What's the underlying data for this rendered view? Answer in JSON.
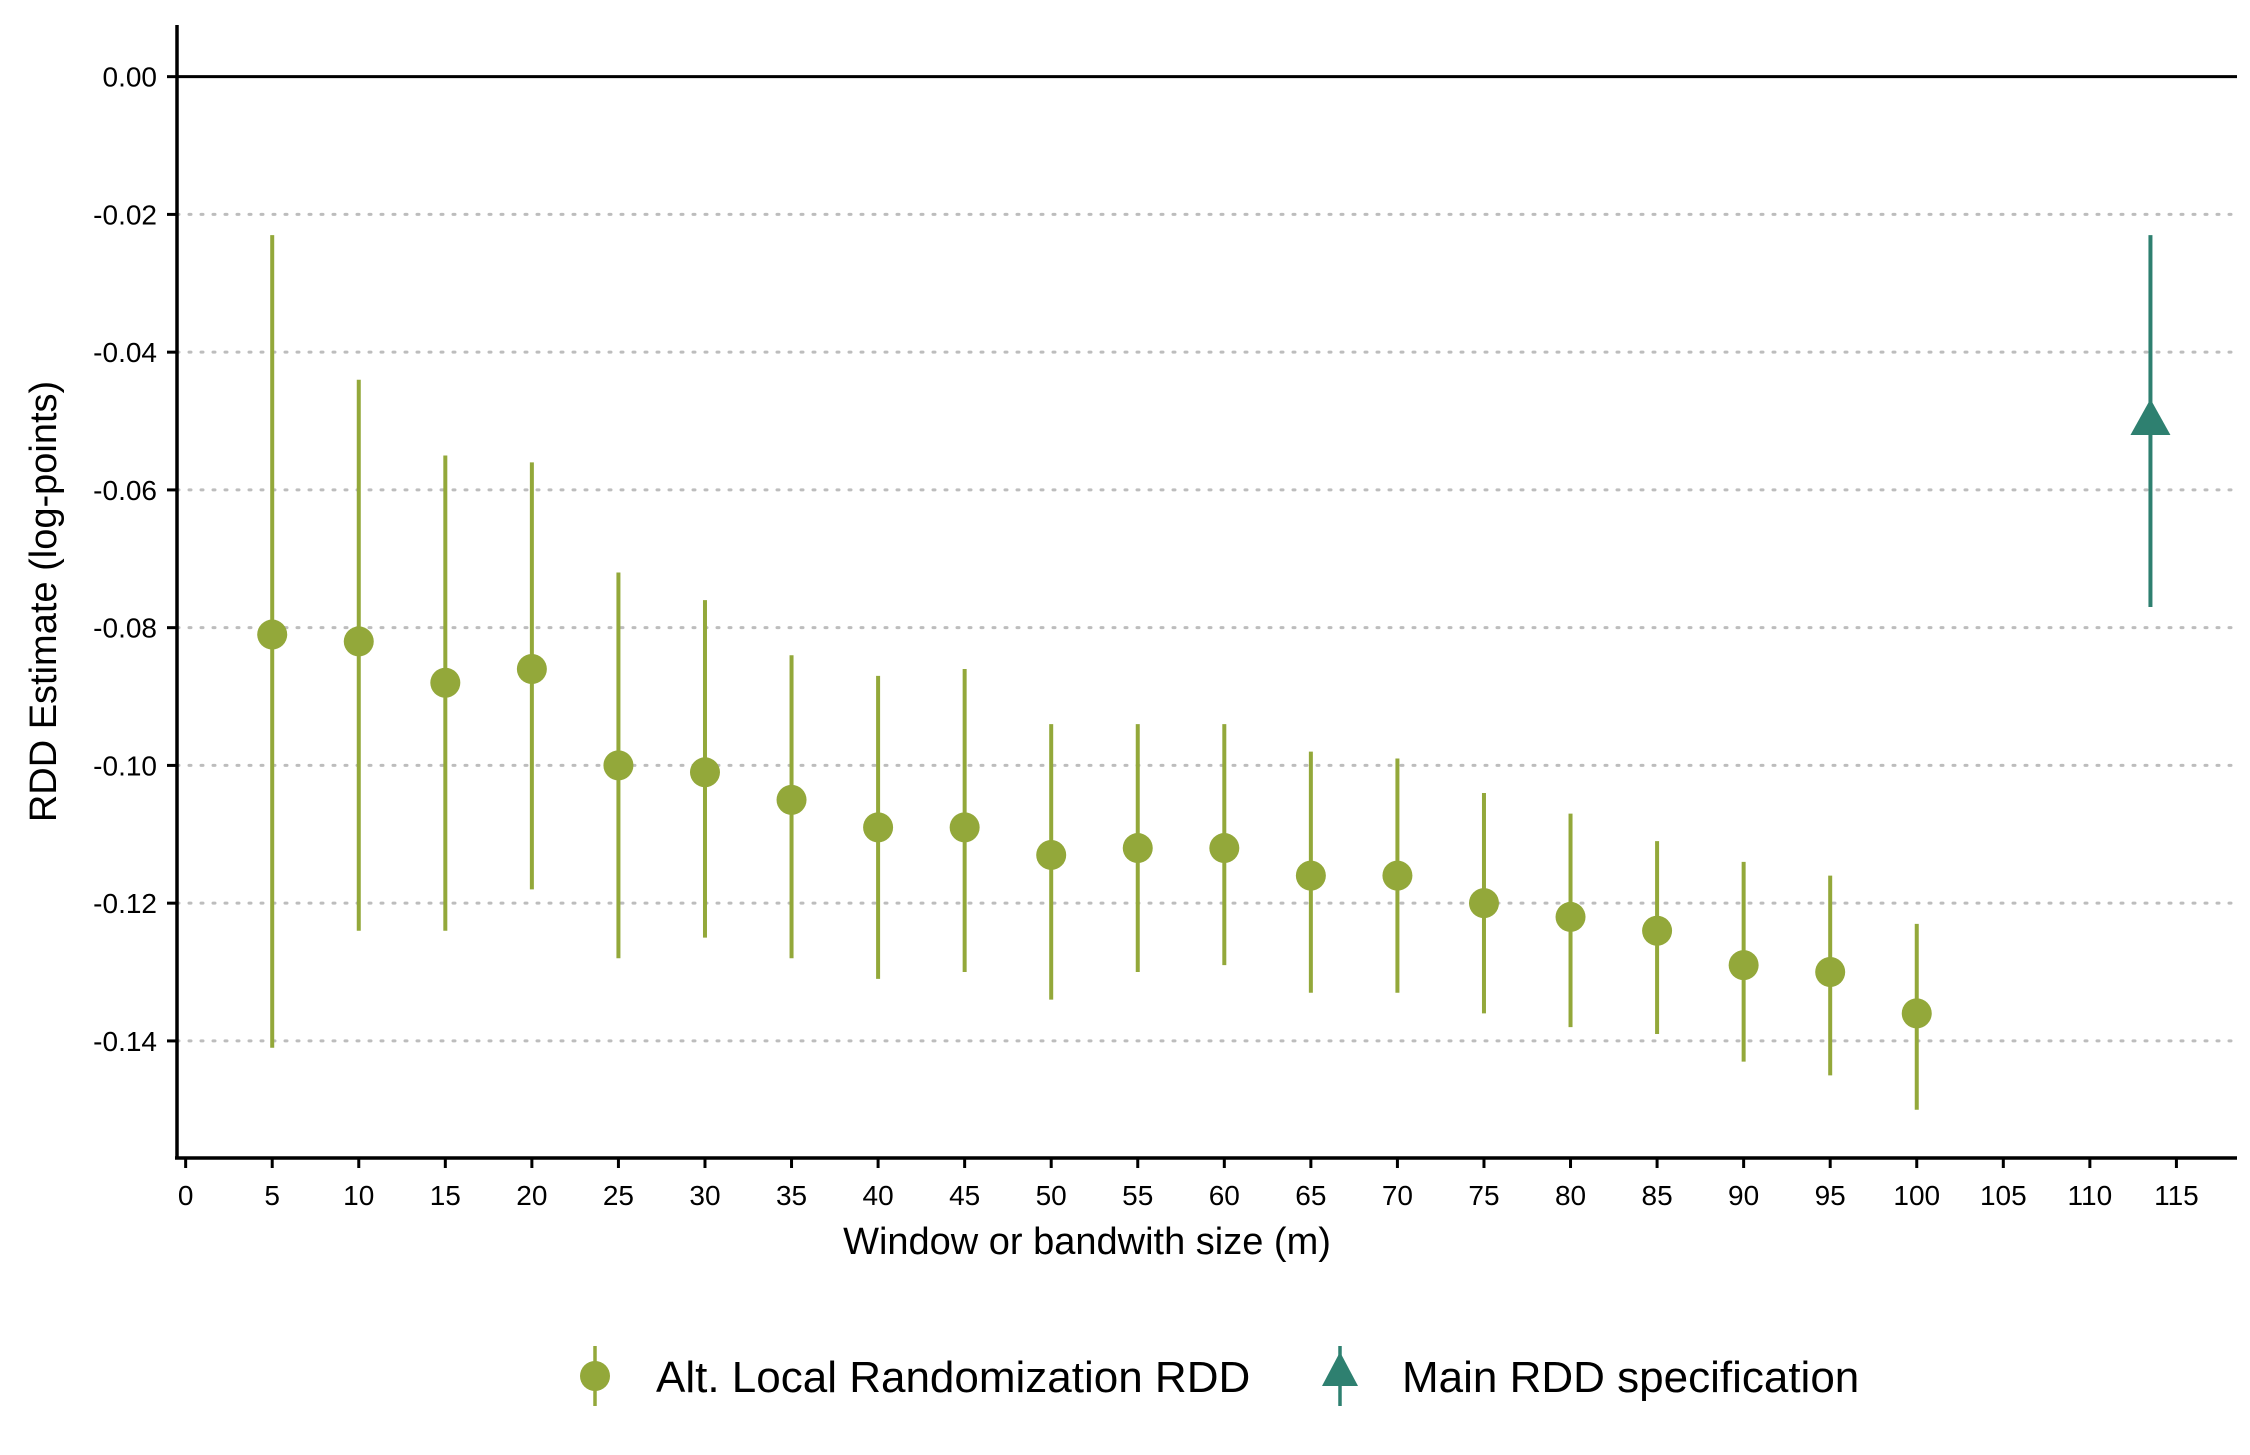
{
  "chart_data": {
    "type": "scatter",
    "xlabel": "Window or bandwith size (m)",
    "ylabel": "RDD Estimate (log-points)",
    "xlim": [
      -0.5,
      118.5
    ],
    "ylim": [
      -0.157,
      0.0075
    ],
    "x_ticks": [
      0,
      5,
      10,
      15,
      20,
      25,
      30,
      35,
      40,
      45,
      50,
      55,
      60,
      65,
      70,
      75,
      80,
      85,
      90,
      95,
      100,
      105,
      110,
      115
    ],
    "y_ticks": [
      0.0,
      -0.02,
      -0.04,
      -0.06,
      -0.08,
      -0.1,
      -0.12,
      -0.14
    ],
    "y_tick_labels": [
      "0.00",
      "-0.02",
      "-0.04",
      "-0.06",
      "-0.08",
      "-0.10",
      "-0.12",
      "-0.14"
    ],
    "reference_line": 0.0,
    "grid": "horizontal dotted",
    "legend_position": "bottom",
    "series": [
      {
        "name": "Alt. Local Randomization RDD",
        "marker": "circle",
        "color": "#93A83A",
        "x": [
          5,
          10,
          15,
          20,
          25,
          30,
          35,
          40,
          45,
          50,
          55,
          60,
          65,
          70,
          75,
          80,
          85,
          90,
          95,
          100
        ],
        "y": [
          -0.081,
          -0.082,
          -0.088,
          -0.086,
          -0.1,
          -0.101,
          -0.105,
          -0.109,
          -0.109,
          -0.113,
          -0.112,
          -0.112,
          -0.116,
          -0.116,
          -0.12,
          -0.122,
          -0.124,
          -0.129,
          -0.13,
          -0.136
        ],
        "lower": [
          -0.141,
          -0.124,
          -0.124,
          -0.118,
          -0.128,
          -0.125,
          -0.128,
          -0.131,
          -0.13,
          -0.134,
          -0.13,
          -0.129,
          -0.133,
          -0.133,
          -0.136,
          -0.138,
          -0.139,
          -0.143,
          -0.145,
          -0.15
        ],
        "upper": [
          -0.023,
          -0.044,
          -0.055,
          -0.056,
          -0.072,
          -0.076,
          -0.084,
          -0.087,
          -0.086,
          -0.094,
          -0.094,
          -0.094,
          -0.098,
          -0.099,
          -0.104,
          -0.107,
          -0.111,
          -0.114,
          -0.116,
          -0.123
        ]
      },
      {
        "name": "Main RDD specification",
        "marker": "triangle",
        "color": "#2E8070",
        "x": [
          113.5
        ],
        "y": [
          -0.05
        ],
        "lower": [
          -0.077
        ],
        "upper": [
          -0.023
        ]
      }
    ]
  }
}
